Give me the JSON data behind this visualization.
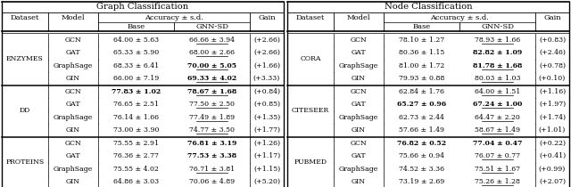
{
  "graph_title": "Graph Classification",
  "node_title": "Node Classification",
  "acc_label": "Accuracy ± s.d.",
  "graph_data": {
    "ENZYMES": {
      "models": [
        "GCN",
        "GAT",
        "GraphSage",
        "GIN"
      ],
      "base": [
        "64.00 ± 5.63",
        "65.33 ± 5.90",
        "68.33 ± 6.41",
        "66.00 ± 7.19"
      ],
      "base_bold": [
        false,
        false,
        false,
        false
      ],
      "gnnsd": [
        "66.66 ± 3.94",
        "68.00 ± 2.66",
        "70.00 ± 5.05",
        "69.33 ± 4.02"
      ],
      "gnnsd_bold": [
        false,
        false,
        true,
        true
      ],
      "gnnsd_underline": [
        true,
        true,
        true,
        true
      ],
      "gain": [
        "(+2.66)",
        "(+2.66)",
        "(+1.66)",
        "(+3.33)"
      ]
    },
    "DD": {
      "models": [
        "GCN",
        "GAT",
        "GraphSage",
        "GIN"
      ],
      "base": [
        "77.83 ± 1.02",
        "76.65 ± 2.51",
        "76.14 ± 1.66",
        "73.00 ± 3.90"
      ],
      "base_bold": [
        true,
        false,
        false,
        false
      ],
      "gnnsd": [
        "78.67 ± 1.68",
        "77.50 ± 2.50",
        "77.49 ± 1.89",
        "74.77 ± 3.50"
      ],
      "gnnsd_bold": [
        true,
        false,
        false,
        false
      ],
      "gnnsd_underline": [
        true,
        true,
        true,
        true
      ],
      "gain": [
        "(+0.84)",
        "(+0.85)",
        "(+1.35)",
        "(+1.77)"
      ]
    },
    "PROTEINS": {
      "models": [
        "GCN",
        "GAT",
        "GraphSage",
        "GIN"
      ],
      "base": [
        "75.55 ± 2.91",
        "76.36 ± 2.77",
        "75.55 ± 4.02",
        "64.86 ± 3.03"
      ],
      "base_bold": [
        false,
        false,
        false,
        false
      ],
      "gnnsd": [
        "76.81 ± 3.19",
        "77.53 ± 3.38",
        "76.71 ± 3.81",
        "70.06 ± 4.89"
      ],
      "gnnsd_bold": [
        true,
        true,
        false,
        false
      ],
      "gnnsd_underline": [
        false,
        false,
        true,
        false
      ],
      "gain": [
        "(+1.26)",
        "(+1.17)",
        "(+1.15)",
        "(+5.20)"
      ]
    }
  },
  "node_data": {
    "CORA": {
      "models": [
        "GCN",
        "GAT",
        "GraphSage",
        "GIN"
      ],
      "base": [
        "78.10 ± 1.27",
        "80.36 ± 1.15",
        "81.00 ± 1.72",
        "79.93 ± 0.88"
      ],
      "base_bold": [
        false,
        false,
        false,
        false
      ],
      "gnnsd": [
        "78.93 ± 1.66",
        "82.82 ± 1.09",
        "81.78 ± 1.68",
        "80.03 ± 1.03"
      ],
      "gnnsd_bold": [
        false,
        true,
        true,
        false
      ],
      "gnnsd_underline": [
        true,
        false,
        true,
        true
      ],
      "gain": [
        "(+0.83)",
        "(+2.46)",
        "(+0.78)",
        "(+0.10)"
      ]
    },
    "CITESEER": {
      "models": [
        "GCN",
        "GAT",
        "GraphSage",
        "GIN"
      ],
      "base": [
        "62.84 ± 1.76",
        "65.27 ± 0.96",
        "62.73 ± 2.44",
        "57.66 ± 1.49"
      ],
      "base_bold": [
        false,
        true,
        false,
        false
      ],
      "gnnsd": [
        "64.00 ± 1.51",
        "67.24 ± 1.00",
        "64.47 ± 2.20",
        "58.67 ± 1.49"
      ],
      "gnnsd_bold": [
        false,
        true,
        false,
        false
      ],
      "gnnsd_underline": [
        true,
        true,
        true,
        true
      ],
      "gain": [
        "(+1.16)",
        "(+1.97)",
        "(+1.74)",
        "(+1.01)"
      ]
    },
    "PUBMED": {
      "models": [
        "GCN",
        "GAT",
        "GraphSage",
        "GIN"
      ],
      "base": [
        "76.82 ± 0.52",
        "75.66 ± 0.94",
        "74.52 ± 3.36",
        "73.19 ± 2.69"
      ],
      "base_bold": [
        true,
        false,
        false,
        false
      ],
      "gnnsd": [
        "77.04 ± 0.47",
        "76.07 ± 0.77",
        "75.51 ± 1.67",
        "75.26 ± 1.28"
      ],
      "gnnsd_bold": [
        true,
        false,
        false,
        false
      ],
      "gnnsd_underline": [
        false,
        true,
        true,
        true
      ],
      "gain": [
        "(+0.22)",
        "(+0.41)",
        "(+0.99)",
        "(+2.07)"
      ]
    }
  }
}
